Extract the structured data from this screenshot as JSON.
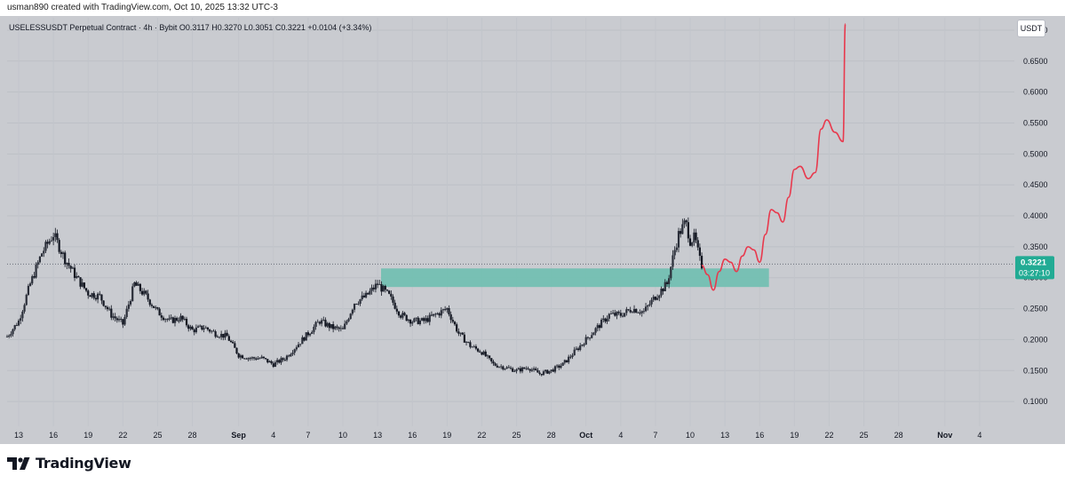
{
  "header": {
    "author_line": "usman890 created with TradingView.com, Oct 10, 2025 13:32 UTC-3"
  },
  "legend": {
    "text": "USELESSUSDT Perpetual Contract · 4h · Bybit  O0.3117  H0.3270  L0.3051  C0.3221  +0.0104 (+3.34%)"
  },
  "currency_button": {
    "label": "USDT"
  },
  "price_label": {
    "price": "0.3221",
    "countdown": "03:27:10",
    "color": "#22ab94"
  },
  "branding": {
    "name": "TradingView"
  },
  "colors": {
    "background": "#c9cbd0",
    "candle": "#131722",
    "zone": "#6fbfb0",
    "projection": "#e8394d"
  },
  "chart_data": {
    "type": "candlestick",
    "y_axis": {
      "min": 0.06,
      "max": 0.72,
      "ticks": [
        "0.1000",
        "0.1500",
        "0.2000",
        "0.2500",
        "0.3000",
        "0.3500",
        "0.4000",
        "0.4500",
        "0.5000",
        "0.5500",
        "0.6000",
        "0.6500",
        "0.7000"
      ]
    },
    "x_axis": {
      "labels": [
        {
          "label": "13",
          "day": 0
        },
        {
          "label": "16",
          "day": 3
        },
        {
          "label": "19",
          "day": 6
        },
        {
          "label": "22",
          "day": 9
        },
        {
          "label": "25",
          "day": 12
        },
        {
          "label": "28",
          "day": 15
        },
        {
          "label": "Sep",
          "day": 19
        },
        {
          "label": "4",
          "day": 22
        },
        {
          "label": "7",
          "day": 25
        },
        {
          "label": "10",
          "day": 28
        },
        {
          "label": "13",
          "day": 31
        },
        {
          "label": "16",
          "day": 34
        },
        {
          "label": "19",
          "day": 37
        },
        {
          "label": "22",
          "day": 40
        },
        {
          "label": "25",
          "day": 43
        },
        {
          "label": "28",
          "day": 46
        },
        {
          "label": "Oct",
          "day": 49
        },
        {
          "label": "4",
          "day": 52
        },
        {
          "label": "7",
          "day": 55
        },
        {
          "label": "10",
          "day": 58
        },
        {
          "label": "13",
          "day": 61
        },
        {
          "label": "16",
          "day": 64
        },
        {
          "label": "19",
          "day": 67
        },
        {
          "label": "22",
          "day": 70
        },
        {
          "label": "25",
          "day": 73
        },
        {
          "label": "28",
          "day": 76
        },
        {
          "label": "Nov",
          "day": 80
        },
        {
          "label": "4",
          "day": 83
        }
      ]
    },
    "price_path": [
      [
        -1,
        0.205
      ],
      [
        0,
        0.23
      ],
      [
        1,
        0.29
      ],
      [
        2,
        0.34
      ],
      [
        3,
        0.37
      ],
      [
        4,
        0.33
      ],
      [
        5,
        0.3
      ],
      [
        6,
        0.275
      ],
      [
        7,
        0.27
      ],
      [
        8,
        0.24
      ],
      [
        9,
        0.225
      ],
      [
        10,
        0.29
      ],
      [
        11,
        0.27
      ],
      [
        12,
        0.245
      ],
      [
        13,
        0.23
      ],
      [
        14,
        0.235
      ],
      [
        15,
        0.215
      ],
      [
        16,
        0.22
      ],
      [
        17,
        0.21
      ],
      [
        18,
        0.205
      ],
      [
        19,
        0.175
      ],
      [
        20,
        0.17
      ],
      [
        21,
        0.17
      ],
      [
        22,
        0.16
      ],
      [
        23,
        0.17
      ],
      [
        24,
        0.19
      ],
      [
        25,
        0.21
      ],
      [
        26,
        0.23
      ],
      [
        27,
        0.22
      ],
      [
        28,
        0.215
      ],
      [
        29,
        0.26
      ],
      [
        30,
        0.27
      ],
      [
        31,
        0.29
      ],
      [
        32,
        0.27
      ],
      [
        33,
        0.24
      ],
      [
        34,
        0.23
      ],
      [
        35,
        0.23
      ],
      [
        36,
        0.24
      ],
      [
        37,
        0.25
      ],
      [
        38,
        0.21
      ],
      [
        39,
        0.19
      ],
      [
        40,
        0.18
      ],
      [
        41,
        0.16
      ],
      [
        42,
        0.155
      ],
      [
        43,
        0.15
      ],
      [
        44,
        0.155
      ],
      [
        45,
        0.145
      ],
      [
        46,
        0.15
      ],
      [
        47,
        0.16
      ],
      [
        48,
        0.18
      ],
      [
        49,
        0.2
      ],
      [
        50,
        0.22
      ],
      [
        51,
        0.24
      ],
      [
        52,
        0.24
      ],
      [
        53,
        0.25
      ],
      [
        54,
        0.245
      ],
      [
        55,
        0.27
      ],
      [
        56,
        0.29
      ],
      [
        56.6,
        0.34
      ],
      [
        57,
        0.37
      ],
      [
        57.6,
        0.39
      ],
      [
        58,
        0.36
      ],
      [
        58.4,
        0.365
      ],
      [
        58.8,
        0.33
      ],
      [
        59,
        0.32
      ]
    ],
    "support_zone": {
      "from_day": 31.3,
      "to_day": 64.8,
      "low": 0.285,
      "high": 0.315
    },
    "current_price": 0.3221,
    "projection": [
      [
        59,
        0.32
      ],
      [
        59.5,
        0.305
      ],
      [
        60,
        0.28
      ],
      [
        60.5,
        0.31
      ],
      [
        61,
        0.33
      ],
      [
        61.5,
        0.325
      ],
      [
        62,
        0.31
      ],
      [
        62.5,
        0.335
      ],
      [
        63,
        0.35
      ],
      [
        63.5,
        0.345
      ],
      [
        64,
        0.325
      ],
      [
        64.5,
        0.37
      ],
      [
        65,
        0.41
      ],
      [
        65.5,
        0.405
      ],
      [
        66,
        0.39
      ],
      [
        66.5,
        0.43
      ],
      [
        67,
        0.475
      ],
      [
        67.5,
        0.48
      ],
      [
        68.2,
        0.46
      ],
      [
        68.8,
        0.47
      ],
      [
        69.3,
        0.54
      ],
      [
        69.8,
        0.555
      ],
      [
        70.5,
        0.535
      ],
      [
        71.2,
        0.52
      ],
      [
        71.4,
        0.71
      ]
    ]
  }
}
